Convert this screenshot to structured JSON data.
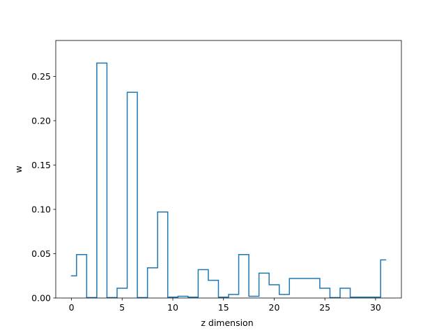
{
  "chart_data": {
    "type": "line",
    "drawstyle": "steps-mid",
    "title": "",
    "xlabel": "z dimension",
    "ylabel": "w",
    "xlim": [
      -1.55,
      32.55
    ],
    "ylim": [
      0,
      0.2905
    ],
    "xticks": [
      0,
      5,
      10,
      15,
      20,
      25,
      30
    ],
    "xtick_labels": [
      "0",
      "5",
      "10",
      "15",
      "20",
      "25",
      "30"
    ],
    "yticks": [
      0,
      0.05,
      0.1,
      0.15,
      0.2,
      0.25
    ],
    "ytick_labels": [
      "0.00",
      "0.05",
      "0.10",
      "0.15",
      "0.20",
      "0.25"
    ],
    "grid": false,
    "legend": "none",
    "series": [
      {
        "color": "#1f77b4",
        "x": [
          0,
          1,
          2,
          3,
          4,
          5,
          6,
          7,
          8,
          9,
          10,
          11,
          12,
          13,
          14,
          15,
          16,
          17,
          18,
          19,
          20,
          21,
          22,
          23,
          24,
          25,
          26,
          27,
          28,
          29,
          30,
          31
        ],
        "y": [
          0.025,
          0.049,
          0.0005,
          0.265,
          0.0005,
          0.011,
          0.232,
          0.0005,
          0.034,
          0.097,
          0.001,
          0.002,
          0.001,
          0.032,
          0.02,
          0.001,
          0.004,
          0.049,
          0.002,
          0.028,
          0.015,
          0.004,
          0.022,
          0.022,
          0.022,
          0.011,
          0.0005,
          0.011,
          0.001,
          0.001,
          0.001,
          0.043
        ]
      }
    ]
  }
}
